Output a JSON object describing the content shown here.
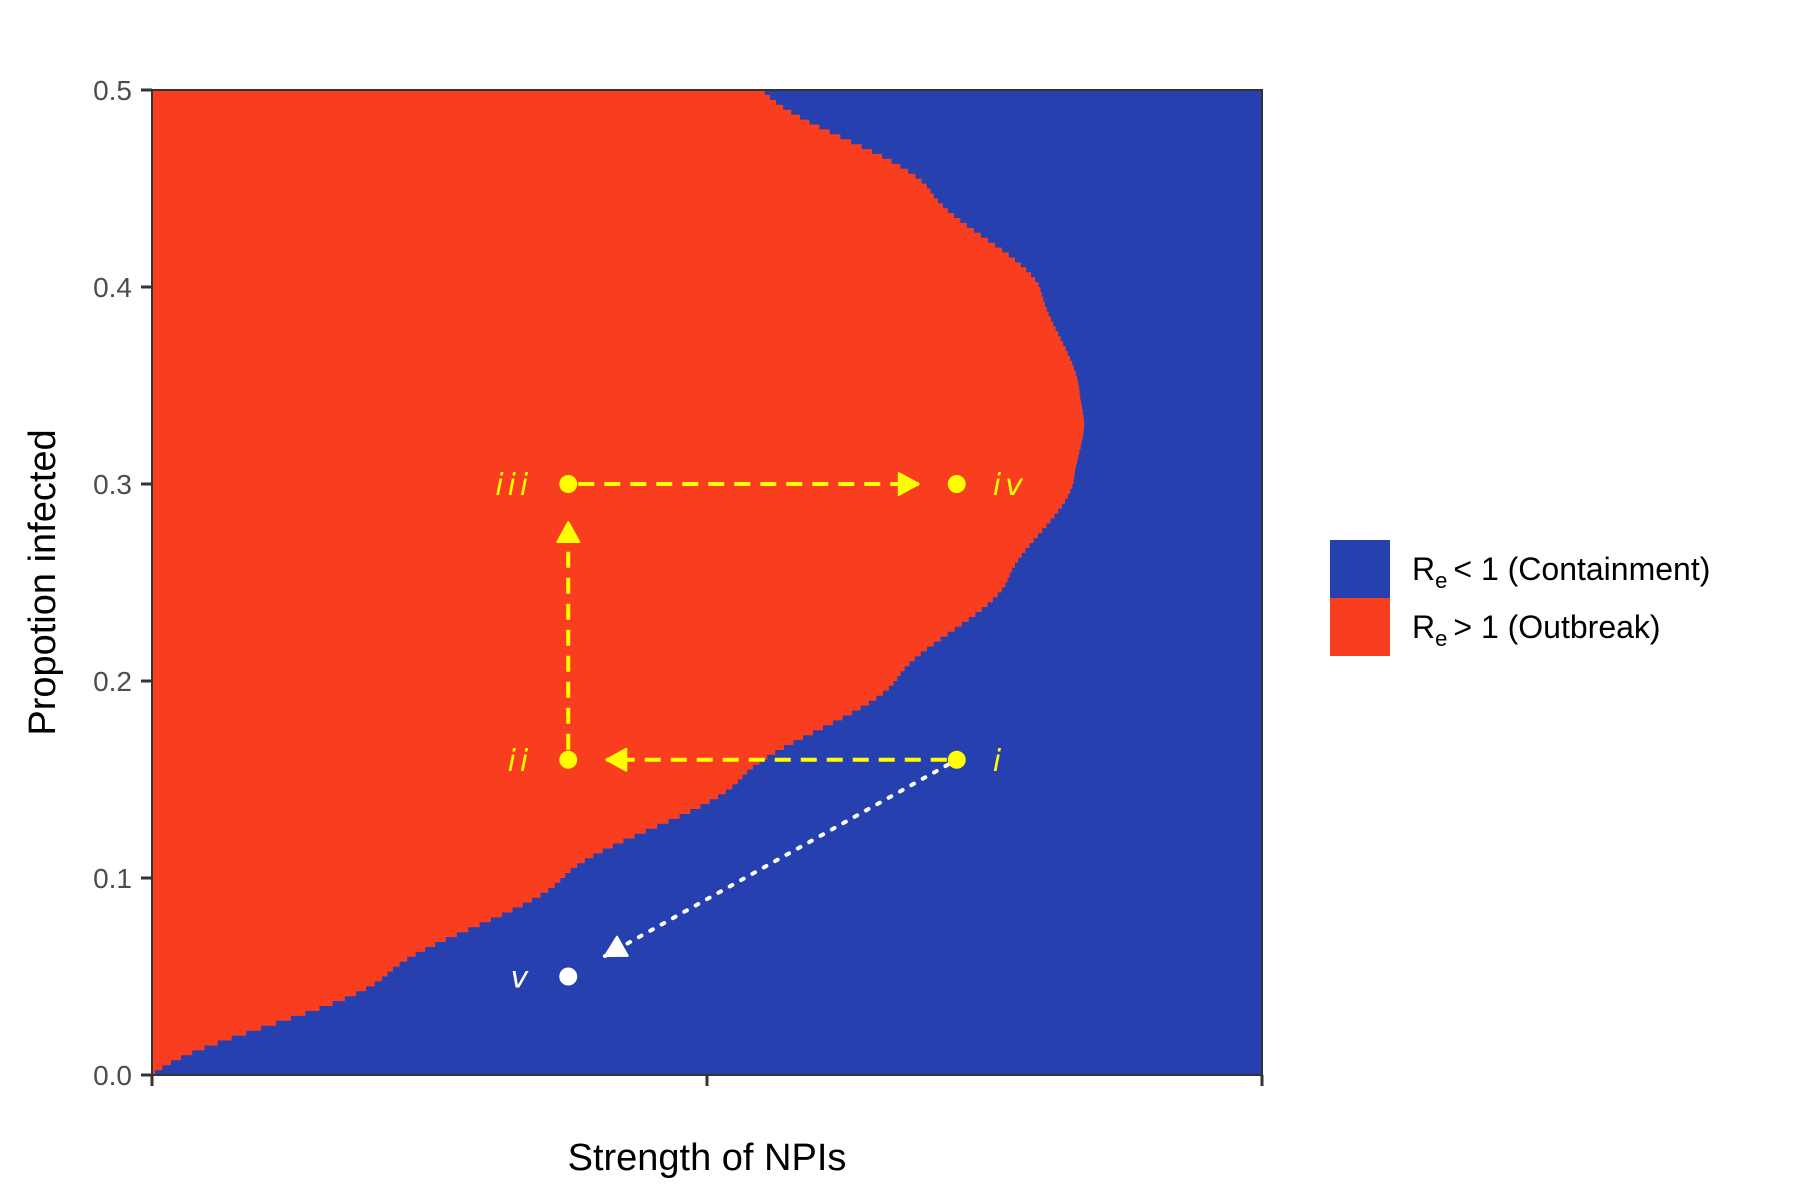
{
  "chart_data": {
    "type": "heatmap",
    "title": "",
    "xlabel": "Strength of NPIs",
    "ylabel": "Propotion infected",
    "xlim": [
      0,
      1
    ],
    "ylim": [
      0,
      0.5
    ],
    "x_ticks": [
      0,
      0.5,
      1
    ],
    "y_ticks": [
      0.0,
      0.1,
      0.2,
      0.3,
      0.4,
      0.5
    ],
    "y_tick_labels": [
      "0.0",
      "0.1",
      "0.2",
      "0.3",
      "0.4",
      "0.5"
    ],
    "grid": false,
    "legend_position": "right",
    "colors": {
      "containment": "#2640b0",
      "outbreak": "#f83e1e",
      "path": "#ffff00",
      "return": "#ffffff"
    },
    "regions": [
      {
        "key": "containment",
        "label": "< 1 (Containment)",
        "label_sub": "e",
        "label_main": "R",
        "color": "#2640b0"
      },
      {
        "key": "outbreak",
        "label": "> 1  (Outbreak)",
        "label_sub": "e",
        "label_main": "R",
        "color": "#f83e1e"
      }
    ],
    "outbreak_boundary": [
      {
        "y": 0.0,
        "x": 0.0
      },
      {
        "y": 0.05,
        "x": 0.21
      },
      {
        "y": 0.1,
        "x": 0.37
      },
      {
        "y": 0.15,
        "x": 0.53
      },
      {
        "y": 0.2,
        "x": 0.67
      },
      {
        "y": 0.25,
        "x": 0.77
      },
      {
        "y": 0.3,
        "x": 0.83
      },
      {
        "y": 0.33,
        "x": 0.84
      },
      {
        "y": 0.35,
        "x": 0.835
      },
      {
        "y": 0.4,
        "x": 0.8
      },
      {
        "y": 0.45,
        "x": 0.7
      },
      {
        "y": 0.5,
        "x": 0.55
      }
    ],
    "points": [
      {
        "label": "i",
        "x": 0.725,
        "y": 0.16,
        "color": "#ffff00"
      },
      {
        "label": "ii",
        "x": 0.375,
        "y": 0.16,
        "color": "#ffff00"
      },
      {
        "label": "iii",
        "x": 0.375,
        "y": 0.3,
        "color": "#ffff00"
      },
      {
        "label": "iv",
        "x": 0.725,
        "y": 0.3,
        "color": "#ffff00"
      },
      {
        "label": "v",
        "x": 0.375,
        "y": 0.05,
        "color": "#ffffff"
      }
    ],
    "arrows": [
      {
        "from": "i",
        "to": "ii",
        "style": "dashed",
        "color": "#ffff00"
      },
      {
        "from": "ii",
        "to": "iii",
        "style": "dashed",
        "color": "#ffff00"
      },
      {
        "from": "iii",
        "to": "iv",
        "style": "dashed",
        "color": "#ffff00"
      },
      {
        "from": "i",
        "to": "v",
        "style": "dotted",
        "color": "#ffffff"
      }
    ]
  }
}
